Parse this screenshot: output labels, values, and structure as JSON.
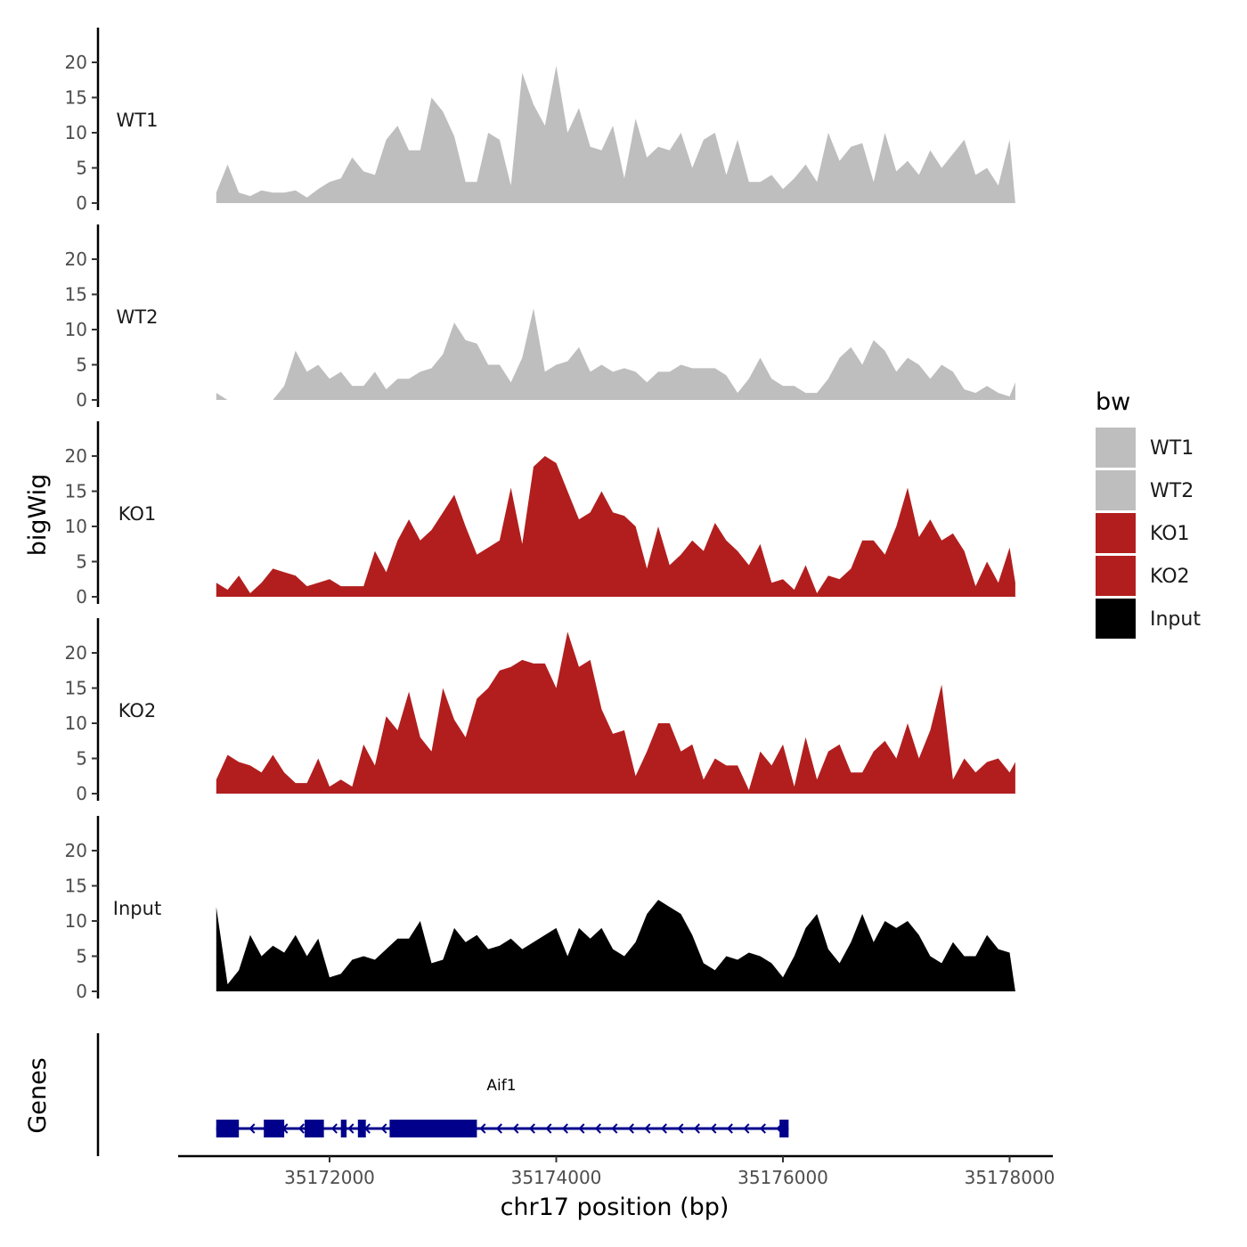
{
  "chart_data": {
    "type": "area",
    "title": "",
    "ylabel": "bigWig",
    "genes_label": "Genes",
    "xlabel": "chr17 position (bp)",
    "xlim": [
      35170900,
      35178100
    ],
    "x_ticks": [
      35172000,
      35174000,
      35176000,
      35178000
    ],
    "ylim": [
      0,
      24
    ],
    "y_ticks": [
      0,
      5,
      10,
      15,
      20
    ],
    "legend": {
      "title": "bw",
      "position": "right",
      "entries": [
        {
          "label": "WT1",
          "color": "#bebebe"
        },
        {
          "label": "WT2",
          "color": "#bebebe"
        },
        {
          "label": "KO1",
          "color": "#b21e1e"
        },
        {
          "label": "KO2",
          "color": "#b21e1e"
        },
        {
          "label": "Input",
          "color": "#000000"
        }
      ]
    },
    "series": [
      {
        "name": "WT1",
        "color": "#bebebe",
        "x": [
          35171000,
          35171100,
          35171200,
          35171300,
          35171400,
          35171500,
          35171600,
          35171700,
          35171800,
          35171900,
          35172000,
          35172100,
          35172200,
          35172300,
          35172400,
          35172500,
          35172600,
          35172700,
          35172800,
          35172900,
          35173000,
          35173100,
          35173200,
          35173300,
          35173400,
          35173500,
          35173600,
          35173700,
          35173800,
          35173900,
          35174000,
          35174100,
          35174200,
          35174300,
          35174400,
          35174500,
          35174600,
          35174700,
          35174800,
          35174900,
          35175000,
          35175100,
          35175200,
          35175300,
          35175400,
          35175500,
          35175600,
          35175700,
          35175800,
          35175900,
          35176000,
          35176100,
          35176200,
          35176300,
          35176400,
          35176500,
          35176600,
          35176700,
          35176800,
          35176900,
          35177000,
          35177100,
          35177200,
          35177300,
          35177400,
          35177500,
          35177600,
          35177700,
          35177800,
          35177900,
          35178000,
          35178050
        ],
        "values": [
          1.5,
          5.5,
          1.5,
          1,
          1.8,
          1.5,
          1.5,
          1.8,
          0.8,
          2,
          3,
          3.5,
          6.5,
          4.5,
          4,
          9,
          11,
          7.5,
          7.5,
          15,
          13,
          9.5,
          3,
          3,
          10,
          9,
          2.5,
          18.5,
          14,
          11,
          19.5,
          10,
          13.5,
          8,
          7.5,
          11,
          3.5,
          12,
          6.5,
          8,
          7.5,
          10,
          5,
          9,
          10,
          4,
          9,
          3,
          3,
          4,
          2,
          3.5,
          5.5,
          3,
          10,
          6,
          8,
          8.5,
          3,
          10,
          4.5,
          6,
          4,
          7.5,
          5,
          7,
          9,
          4,
          5,
          2.5,
          9,
          0
        ]
      },
      {
        "name": "WT2",
        "color": "#bebebe",
        "x": [
          35171000,
          35171100,
          35171200,
          35171300,
          35171400,
          35171500,
          35171600,
          35171700,
          35171800,
          35171900,
          35172000,
          35172100,
          35172200,
          35172300,
          35172400,
          35172500,
          35172600,
          35172700,
          35172800,
          35172900,
          35173000,
          35173100,
          35173200,
          35173300,
          35173400,
          35173500,
          35173600,
          35173700,
          35173800,
          35173900,
          35174000,
          35174100,
          35174200,
          35174300,
          35174400,
          35174500,
          35174600,
          35174700,
          35174800,
          35174900,
          35175000,
          35175100,
          35175200,
          35175300,
          35175400,
          35175500,
          35175600,
          35175700,
          35175800,
          35175900,
          35176000,
          35176100,
          35176200,
          35176300,
          35176400,
          35176500,
          35176600,
          35176700,
          35176800,
          35176900,
          35177000,
          35177100,
          35177200,
          35177300,
          35177400,
          35177500,
          35177600,
          35177700,
          35177800,
          35177900,
          35178000,
          35178050
        ],
        "values": [
          1,
          0,
          0,
          0,
          0,
          0,
          2,
          7,
          4,
          5,
          3,
          4,
          2,
          2,
          4,
          1.5,
          3,
          3,
          4,
          4.5,
          6.5,
          11,
          8.5,
          8,
          5,
          5,
          2.5,
          6,
          13,
          4,
          5,
          5.5,
          7.5,
          4,
          5,
          4,
          4.5,
          4,
          2.5,
          4,
          4,
          5,
          4.5,
          4.5,
          4.5,
          3.5,
          1,
          3,
          6,
          3,
          2,
          2,
          1,
          1,
          3,
          6,
          7.5,
          5,
          8.5,
          7,
          4,
          6,
          5,
          3,
          5,
          4,
          1.5,
          1,
          2,
          1,
          0.5,
          2.5
        ]
      },
      {
        "name": "KO1",
        "color": "#b21e1e",
        "x": [
          35171000,
          35171100,
          35171200,
          35171300,
          35171400,
          35171500,
          35171600,
          35171700,
          35171800,
          35171900,
          35172000,
          35172100,
          35172200,
          35172300,
          35172400,
          35172500,
          35172600,
          35172700,
          35172800,
          35172900,
          35173000,
          35173100,
          35173200,
          35173300,
          35173400,
          35173500,
          35173600,
          35173700,
          35173800,
          35173900,
          35174000,
          35174100,
          35174200,
          35174300,
          35174400,
          35174500,
          35174600,
          35174700,
          35174800,
          35174900,
          35175000,
          35175100,
          35175200,
          35175300,
          35175400,
          35175500,
          35175600,
          35175700,
          35175800,
          35175900,
          35176000,
          35176100,
          35176200,
          35176300,
          35176400,
          35176500,
          35176600,
          35176700,
          35176800,
          35176900,
          35177000,
          35177100,
          35177200,
          35177300,
          35177400,
          35177500,
          35177600,
          35177700,
          35177800,
          35177900,
          35178000,
          35178050
        ],
        "values": [
          2,
          1,
          3,
          0.5,
          2,
          4,
          3.5,
          3,
          1.5,
          2,
          2.5,
          1.5,
          1.5,
          1.5,
          6.5,
          3.5,
          8,
          11,
          8,
          9.5,
          12,
          14.5,
          10,
          6,
          7,
          8,
          15.5,
          7.5,
          18.5,
          20,
          19,
          15,
          11,
          12,
          15,
          12,
          11.5,
          10,
          4,
          10,
          4.5,
          6,
          8,
          6.5,
          10.5,
          8,
          6.5,
          4.5,
          7.5,
          2,
          2.5,
          1,
          4.5,
          0.5,
          3,
          2.5,
          4,
          8,
          8,
          6,
          10,
          15.5,
          8.5,
          11,
          8,
          9,
          6.5,
          1.5,
          5,
          2,
          7,
          2
        ]
      },
      {
        "name": "KO2",
        "color": "#b21e1e",
        "x": [
          35171000,
          35171100,
          35171200,
          35171300,
          35171400,
          35171500,
          35171600,
          35171700,
          35171800,
          35171900,
          35172000,
          35172100,
          35172200,
          35172300,
          35172400,
          35172500,
          35172600,
          35172700,
          35172800,
          35172900,
          35173000,
          35173100,
          35173200,
          35173300,
          35173400,
          35173500,
          35173600,
          35173700,
          35173800,
          35173900,
          35174000,
          35174100,
          35174200,
          35174300,
          35174400,
          35174500,
          35174600,
          35174700,
          35174800,
          35174900,
          35175000,
          35175100,
          35175200,
          35175300,
          35175400,
          35175500,
          35175600,
          35175700,
          35175800,
          35175900,
          35176000,
          35176100,
          35176200,
          35176300,
          35176400,
          35176500,
          35176600,
          35176700,
          35176800,
          35176900,
          35177000,
          35177100,
          35177200,
          35177300,
          35177400,
          35177500,
          35177600,
          35177700,
          35177800,
          35177900,
          35178000,
          35178050
        ],
        "values": [
          2,
          5.5,
          4.5,
          4,
          3,
          5.5,
          3,
          1.5,
          1.5,
          5,
          1,
          2,
          1,
          7,
          4,
          11,
          9,
          14.5,
          8,
          6,
          15,
          10.5,
          8,
          13.5,
          15,
          17.5,
          18,
          19,
          18.5,
          18.5,
          15,
          23,
          18,
          19,
          12,
          8.5,
          9,
          2.5,
          6,
          10,
          10,
          6,
          7,
          2,
          5,
          4,
          4,
          0.5,
          6,
          4,
          7,
          1,
          8,
          2,
          6,
          7,
          3,
          3,
          6,
          7.5,
          5,
          10,
          5,
          9,
          15.5,
          2,
          5,
          3,
          4.5,
          5,
          3,
          4.5
        ]
      },
      {
        "name": "Input",
        "color": "#000000",
        "x": [
          35171000,
          35171100,
          35171200,
          35171300,
          35171400,
          35171500,
          35171600,
          35171700,
          35171800,
          35171900,
          35172000,
          35172100,
          35172200,
          35172300,
          35172400,
          35172500,
          35172600,
          35172700,
          35172800,
          35172900,
          35173000,
          35173100,
          35173200,
          35173300,
          35173400,
          35173500,
          35173600,
          35173700,
          35173800,
          35173900,
          35174000,
          35174100,
          35174200,
          35174300,
          35174400,
          35174500,
          35174600,
          35174700,
          35174800,
          35174900,
          35175000,
          35175100,
          35175200,
          35175300,
          35175400,
          35175500,
          35175600,
          35175700,
          35175800,
          35175900,
          35176000,
          35176100,
          35176200,
          35176300,
          35176400,
          35176500,
          35176600,
          35176700,
          35176800,
          35176900,
          35177000,
          35177100,
          35177200,
          35177300,
          35177400,
          35177500,
          35177600,
          35177700,
          35177800,
          35177900,
          35178000,
          35178050
        ],
        "values": [
          12,
          1,
          3,
          8,
          5,
          6.5,
          5.5,
          8,
          5,
          7.5,
          2,
          2.5,
          4.5,
          5,
          4.5,
          6,
          7.5,
          7.5,
          10,
          4,
          4.5,
          9,
          7,
          8,
          6,
          6.5,
          7.5,
          6,
          7,
          8,
          9,
          5,
          9,
          7.5,
          9,
          6,
          5,
          7,
          11,
          13,
          12,
          11,
          8,
          4,
          3,
          5,
          4.5,
          5.5,
          5,
          4,
          2,
          5,
          9,
          11,
          6,
          4,
          7,
          11,
          7,
          10,
          9,
          10,
          8,
          5,
          4,
          7,
          5,
          5,
          8,
          6,
          5.5,
          0
        ]
      }
    ],
    "genes": [
      {
        "name": "Aif1",
        "strand": "-",
        "start": 35171000,
        "end": 35176050,
        "color": "#00008b",
        "exons": [
          [
            35171000,
            35171200
          ],
          [
            35171420,
            35171600
          ],
          [
            35171780,
            35171950
          ],
          [
            35172100,
            35172150
          ],
          [
            35172250,
            35172320
          ],
          [
            35172530,
            35173300
          ],
          [
            35175970,
            35176050
          ]
        ]
      }
    ]
  }
}
